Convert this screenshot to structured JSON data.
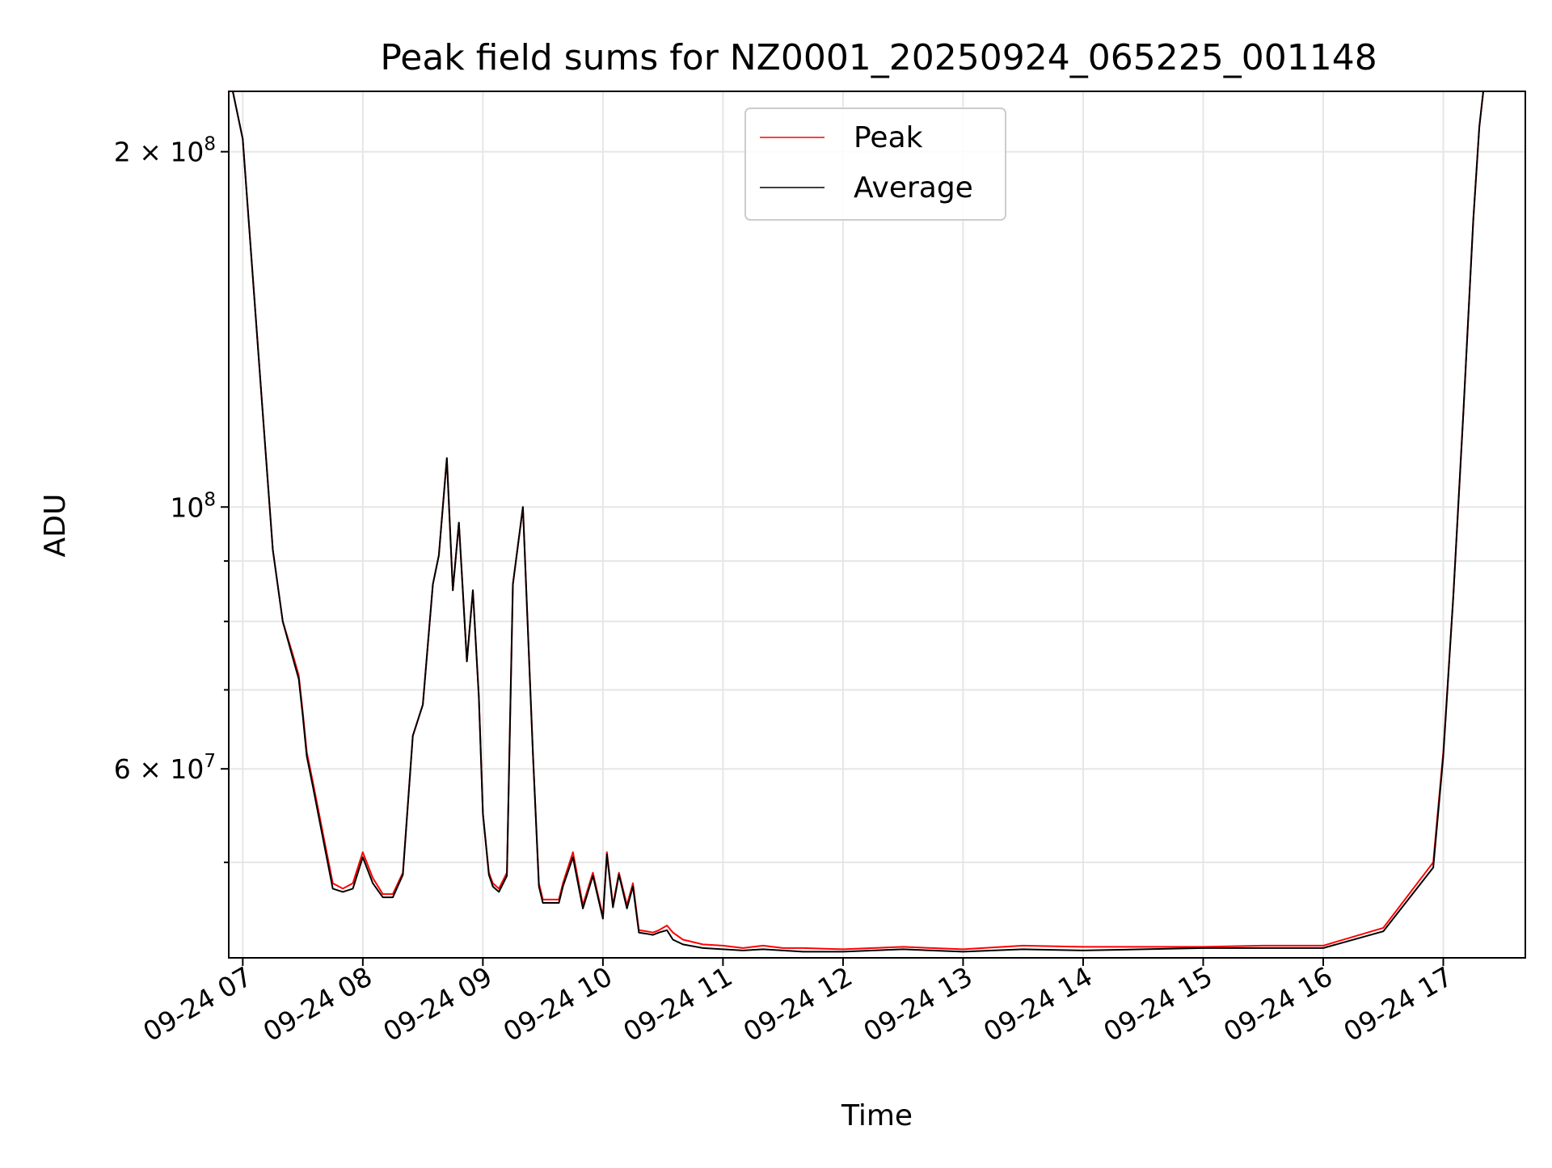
{
  "chart_data": {
    "type": "line",
    "title": "Peak field sums for NZ0001_20250924_065225_001148",
    "xlabel": "Time",
    "ylabel": "ADU",
    "yscale": "log",
    "xlim": [
      "2025-09-24 06:53",
      "2025-09-24 17:41"
    ],
    "ylim": [
      41500000,
      225000000
    ],
    "grid": true,
    "legend_position": "upper-center",
    "x_ticks": [
      "09-24 07",
      "09-24 08",
      "09-24 09",
      "09-24 10",
      "09-24 11",
      "09-24 12",
      "09-24 13",
      "09-24 14",
      "09-24 15",
      "09-24 16",
      "09-24 17"
    ],
    "y_ticks": [
      {
        "value": 200000000,
        "label": "2 × 10⁸",
        "base": "2 × 10",
        "exp": "8"
      },
      {
        "value": 100000000,
        "label": "10⁸",
        "base": "10",
        "exp": "8"
      },
      {
        "value": 60000000,
        "label": "6 × 10⁷",
        "base": "6 × 10",
        "exp": "7"
      }
    ],
    "y_minor_ticks": [
      50000000,
      70000000,
      80000000,
      90000000
    ],
    "x": [
      "06:55",
      "07:00",
      "07:10",
      "07:15",
      "07:20",
      "07:25",
      "07:28",
      "07:30",
      "07:32",
      "07:35",
      "07:40",
      "07:45",
      "07:50",
      "07:55",
      "08:00",
      "08:05",
      "08:10",
      "08:15",
      "08:20",
      "08:25",
      "08:30",
      "08:35",
      "08:38",
      "08:42",
      "08:45",
      "08:48",
      "08:52",
      "08:55",
      "08:58",
      "09:00",
      "09:03",
      "09:05",
      "09:08",
      "09:12",
      "09:15",
      "09:20",
      "09:25",
      "09:28",
      "09:30",
      "09:33",
      "09:35",
      "09:38",
      "09:40",
      "09:45",
      "09:50",
      "09:55",
      "10:00",
      "10:02",
      "10:05",
      "10:08",
      "10:12",
      "10:15",
      "10:18",
      "10:22",
      "10:25",
      "10:28",
      "10:32",
      "10:35",
      "10:40",
      "10:50",
      "11:00",
      "11:10",
      "11:20",
      "11:30",
      "11:40",
      "12:00",
      "12:30",
      "13:00",
      "13:30",
      "14:00",
      "14:30",
      "15:00",
      "15:30",
      "16:00",
      "16:30",
      "16:55",
      "17:00",
      "17:05",
      "17:10",
      "17:15",
      "17:18",
      "17:20",
      "17:25",
      "17:30",
      "17:35",
      "17:40"
    ],
    "series": [
      {
        "name": "Peak",
        "color": "#ff0000",
        "values": [
          225000000,
          205000000,
          120000000,
          92000000,
          80000000,
          75000000,
          72000000,
          67000000,
          62000000,
          58500000,
          53000000,
          48000000,
          47500000,
          48000000,
          51000000,
          48500000,
          47000000,
          47000000,
          49000000,
          64000000,
          68000000,
          86000000,
          91000000,
          110000000,
          85000000,
          97000000,
          74000000,
          85000000,
          69000000,
          55000000,
          49000000,
          48000000,
          47500000,
          49000000,
          86000000,
          100000000,
          62000000,
          48000000,
          46500000,
          46500000,
          46500000,
          46500000,
          48000000,
          51000000,
          46000000,
          49000000,
          45000000,
          51000000,
          46000000,
          49000000,
          46000000,
          48000000,
          43800000,
          43700000,
          43600000,
          43800000,
          44200000,
          43600000,
          43000000,
          42600000,
          42500000,
          42300000,
          42500000,
          42300000,
          42300000,
          42200000,
          42400000,
          42200000,
          42500000,
          42400000,
          42400000,
          42400000,
          42500000,
          42500000,
          44000000,
          50000000,
          62000000,
          84000000,
          120000000,
          175000000,
          210000000,
          225000000,
          225000000,
          225000000,
          225000000,
          225000000
        ]
      },
      {
        "name": "Average",
        "color": "#000000",
        "values": [
          225000000,
          205000000,
          120000000,
          92000000,
          80000000,
          74500000,
          71500000,
          66500000,
          61500000,
          58000000,
          52500000,
          47500000,
          47200000,
          47500000,
          50500000,
          48000000,
          46700000,
          46700000,
          48800000,
          64000000,
          68000000,
          86000000,
          91000000,
          110000000,
          85000000,
          97000000,
          74000000,
          85000000,
          69000000,
          55000000,
          48800000,
          47700000,
          47200000,
          48700000,
          86000000,
          100000000,
          62000000,
          47700000,
          46200000,
          46200000,
          46200000,
          46200000,
          47700000,
          50500000,
          45700000,
          48700000,
          44800000,
          50800000,
          45800000,
          48800000,
          45700000,
          47700000,
          43600000,
          43500000,
          43400000,
          43600000,
          43800000,
          43000000,
          42600000,
          42300000,
          42200000,
          42100000,
          42200000,
          42100000,
          42000000,
          42000000,
          42200000,
          42000000,
          42200000,
          42100000,
          42200000,
          42300000,
          42300000,
          42300000,
          43700000,
          49500000,
          61500000,
          84000000,
          120000000,
          175000000,
          210000000,
          225000000,
          225000000,
          225000000,
          225000000,
          225000000
        ]
      }
    ]
  }
}
